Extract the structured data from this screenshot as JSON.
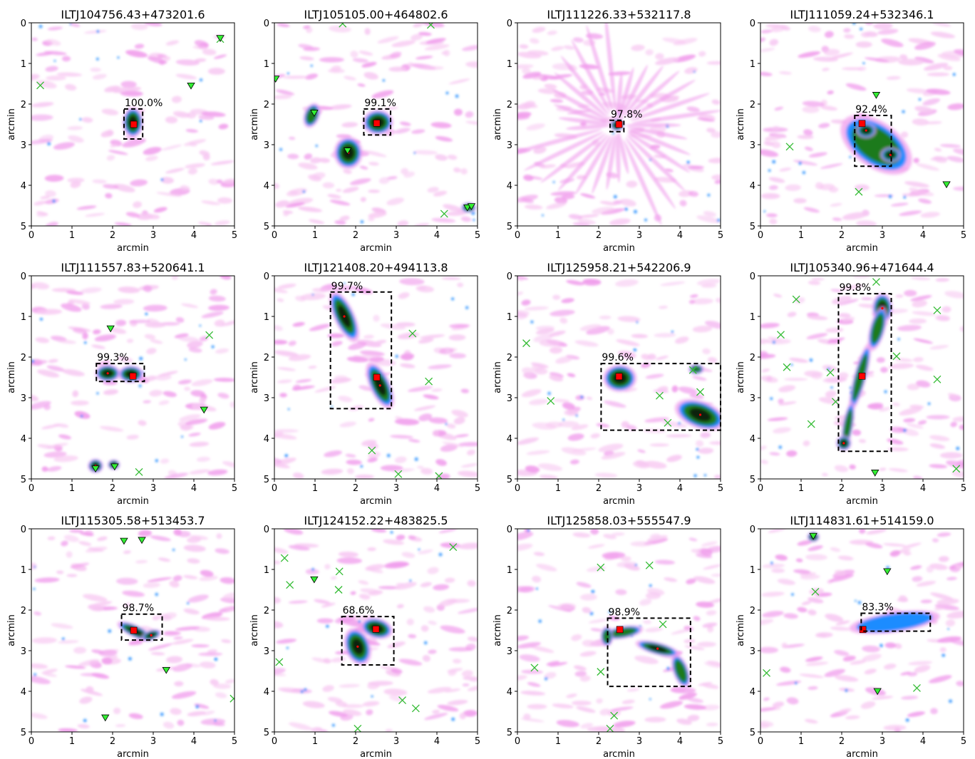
{
  "figure": {
    "colors": {
      "background_faint": "#f7c8f2",
      "background_pink": "#f09cec",
      "emission_blue": "#1f8cff",
      "emission_green": "#1c7a1c",
      "emission_dark": "#0b240b",
      "core_red": "#ff0000",
      "marker_green": "#33ee33",
      "cross_green": "#33bb33",
      "box": "#000000"
    }
  },
  "chart_data": [
    {
      "type": "scatter",
      "title": "ILTJ104756.43+473201.6",
      "xlabel": "arcmin",
      "ylabel": "arcmin",
      "xlim": [
        0,
        5
      ],
      "ylim": [
        5,
        0
      ],
      "xticks": [
        "0",
        "1",
        "2",
        "3",
        "4",
        "5"
      ],
      "yticks": [
        "0",
        "1",
        "2",
        "3",
        "4",
        "5"
      ],
      "box_label": "100.0%",
      "box": {
        "x0": 2.28,
        "y0": 2.12,
        "x1": 2.74,
        "y1": 2.86
      },
      "sources": [
        {
          "x": 2.5,
          "y": 2.45,
          "rx": 0.2,
          "ry": 0.3,
          "angle": 0,
          "strength": 1.0
        }
      ],
      "square_markers": [
        {
          "x": 2.52,
          "y": 2.5
        }
      ],
      "triangle_markers": [
        {
          "x": 3.93,
          "y": 1.55
        },
        {
          "x": 4.65,
          "y": 0.38
        }
      ],
      "cross_markers": [
        {
          "x": 0.22,
          "y": 1.54
        },
        {
          "x": 4.65,
          "y": 0.4
        }
      ],
      "radial_pattern": false
    },
    {
      "type": "scatter",
      "title": "ILTJ105105.00+464802.6",
      "xlabel": "arcmin",
      "ylabel": "arcmin",
      "xlim": [
        0,
        5
      ],
      "ylim": [
        5,
        0
      ],
      "xticks": [
        "0",
        "1",
        "2",
        "3",
        "4",
        "5"
      ],
      "yticks": [
        "0",
        "1",
        "2",
        "3",
        "4",
        "5"
      ],
      "box_label": "99.1%",
      "box": {
        "x0": 2.2,
        "y0": 2.12,
        "x1": 2.86,
        "y1": 2.76
      },
      "sources": [
        {
          "x": 2.55,
          "y": 2.45,
          "rx": 0.3,
          "ry": 0.25,
          "angle": 0,
          "strength": 1.0
        },
        {
          "x": 1.82,
          "y": 3.2,
          "rx": 0.28,
          "ry": 0.32,
          "angle": 0,
          "strength": 1.0
        },
        {
          "x": 0.92,
          "y": 2.28,
          "rx": 0.15,
          "ry": 0.25,
          "angle": 20,
          "strength": 0.8
        },
        {
          "x": 4.78,
          "y": 4.55,
          "rx": 0.15,
          "ry": 0.1,
          "angle": 0,
          "strength": 0.8
        }
      ],
      "square_markers": [
        {
          "x": 2.52,
          "y": 2.47
        }
      ],
      "triangle_markers": [
        {
          "x": 1.8,
          "y": 3.15
        },
        {
          "x": 0.98,
          "y": 2.22
        },
        {
          "x": 0.03,
          "y": 1.38
        },
        {
          "x": 4.75,
          "y": 4.55
        },
        {
          "x": 4.85,
          "y": 4.52
        }
      ],
      "cross_markers": [
        {
          "x": 1.68,
          "y": 0.02
        },
        {
          "x": 3.85,
          "y": 0.05
        },
        {
          "x": 4.18,
          "y": 4.7
        }
      ],
      "radial_pattern": false
    },
    {
      "type": "scatter",
      "title": "ILTJ111226.33+532117.8",
      "xlabel": "arcmin",
      "ylabel": "arcmin",
      "xlim": [
        0,
        5
      ],
      "ylim": [
        5,
        0
      ],
      "xticks": [
        "0",
        "1",
        "2",
        "3",
        "4",
        "5"
      ],
      "yticks": [
        "0",
        "1",
        "2",
        "3",
        "4",
        "5"
      ],
      "box_label": "97.8%",
      "box": {
        "x0": 2.28,
        "y0": 2.4,
        "x1": 2.62,
        "y1": 2.68
      },
      "sources": [
        {
          "x": 2.45,
          "y": 2.52,
          "rx": 0.14,
          "ry": 0.12,
          "angle": 0,
          "strength": 1.0
        }
      ],
      "square_markers": [
        {
          "x": 2.5,
          "y": 2.5
        }
      ],
      "triangle_markers": [],
      "cross_markers": [],
      "radial_pattern": true
    },
    {
      "type": "scatter",
      "title": "ILTJ111059.24+532346.1",
      "xlabel": "arcmin",
      "ylabel": "arcmin",
      "xlim": [
        0,
        5
      ],
      "ylim": [
        5,
        0
      ],
      "xticks": [
        "0",
        "1",
        "2",
        "3",
        "4",
        "5"
      ],
      "yticks": [
        "0",
        "1",
        "2",
        "3",
        "4",
        "5"
      ],
      "box_label": "92.4%",
      "box": {
        "x0": 2.32,
        "y0": 2.28,
        "x1": 3.22,
        "y1": 3.53
      },
      "sources": [
        {
          "x": 2.85,
          "y": 3.0,
          "rx": 0.8,
          "ry": 0.45,
          "angle": 35,
          "strength": 0.55
        },
        {
          "x": 2.6,
          "y": 2.65,
          "rx": 0.2,
          "ry": 0.15,
          "angle": 0,
          "strength": 1.0
        },
        {
          "x": 3.2,
          "y": 3.25,
          "rx": 0.2,
          "ry": 0.15,
          "angle": 0,
          "strength": 1.0
        }
      ],
      "square_markers": [
        {
          "x": 2.5,
          "y": 2.48
        }
      ],
      "triangle_markers": [
        {
          "x": 2.85,
          "y": 1.78
        },
        {
          "x": 4.58,
          "y": 3.98
        }
      ],
      "cross_markers": [
        {
          "x": 0.72,
          "y": 3.05
        },
        {
          "x": 2.42,
          "y": 4.16
        }
      ],
      "radial_pattern": false
    },
    {
      "type": "scatter",
      "title": "ILTJ111557.83+520641.1",
      "xlabel": "arcmin",
      "ylabel": "arcmin",
      "xlim": [
        0,
        5
      ],
      "ylim": [
        5,
        0
      ],
      "xticks": [
        "0",
        "1",
        "2",
        "3",
        "4",
        "5"
      ],
      "yticks": [
        "0",
        "1",
        "2",
        "3",
        "4",
        "5"
      ],
      "box_label": "99.3%",
      "box": {
        "x0": 1.6,
        "y0": 2.16,
        "x1": 2.78,
        "y1": 2.6
      },
      "sources": [
        {
          "x": 1.88,
          "y": 2.4,
          "rx": 0.25,
          "ry": 0.17,
          "angle": 0,
          "strength": 1.0
        },
        {
          "x": 2.45,
          "y": 2.42,
          "rx": 0.25,
          "ry": 0.17,
          "angle": 0,
          "strength": 1.0
        },
        {
          "x": 1.58,
          "y": 4.68,
          "rx": 0.15,
          "ry": 0.14,
          "angle": 0,
          "strength": 0.9
        },
        {
          "x": 2.03,
          "y": 4.65,
          "rx": 0.12,
          "ry": 0.1,
          "angle": 0,
          "strength": 0.9
        }
      ],
      "square_markers": [
        {
          "x": 2.5,
          "y": 2.47
        }
      ],
      "triangle_markers": [
        {
          "x": 1.95,
          "y": 1.3
        },
        {
          "x": 4.25,
          "y": 3.3
        },
        {
          "x": 1.58,
          "y": 4.75
        },
        {
          "x": 2.05,
          "y": 4.7
        }
      ],
      "cross_markers": [
        {
          "x": 4.38,
          "y": 1.46
        },
        {
          "x": 2.65,
          "y": 4.83
        }
      ],
      "radial_pattern": false
    },
    {
      "type": "scatter",
      "title": "ILTJ121408.20+494113.8",
      "xlabel": "arcmin",
      "ylabel": "arcmin",
      "xlim": [
        0,
        5
      ],
      "ylim": [
        5,
        0
      ],
      "xticks": [
        "0",
        "1",
        "2",
        "3",
        "4",
        "5"
      ],
      "yticks": [
        "0",
        "1",
        "2",
        "3",
        "4",
        "5"
      ],
      "box_label": "99.7%",
      "box": {
        "x0": 1.38,
        "y0": 0.4,
        "x1": 2.88,
        "y1": 3.27
      },
      "sources": [
        {
          "x": 1.72,
          "y": 1.0,
          "rx": 0.2,
          "ry": 0.55,
          "angle": -25,
          "strength": 1.0
        },
        {
          "x": 2.6,
          "y": 2.7,
          "rx": 0.2,
          "ry": 0.5,
          "angle": -25,
          "strength": 1.0
        }
      ],
      "square_markers": [
        {
          "x": 2.52,
          "y": 2.5
        }
      ],
      "triangle_markers": [],
      "cross_markers": [
        {
          "x": 3.4,
          "y": 1.42
        },
        {
          "x": 3.8,
          "y": 2.6
        },
        {
          "x": 2.4,
          "y": 4.3
        },
        {
          "x": 3.05,
          "y": 4.88
        },
        {
          "x": 4.05,
          "y": 4.93
        }
      ],
      "radial_pattern": false
    },
    {
      "type": "scatter",
      "title": "ILTJ125958.21+542206.9",
      "xlabel": "arcmin",
      "ylabel": "arcmin",
      "xlim": [
        0,
        5
      ],
      "ylim": [
        5,
        0
      ],
      "xticks": [
        "0",
        "1",
        "2",
        "3",
        "4",
        "5"
      ],
      "yticks": [
        "0",
        "1",
        "2",
        "3",
        "4",
        "5"
      ],
      "box_label": "99.6%",
      "box": {
        "x0": 2.06,
        "y0": 2.16,
        "x1": 5.0,
        "y1": 3.8
      },
      "sources": [
        {
          "x": 2.52,
          "y": 2.52,
          "rx": 0.33,
          "ry": 0.27,
          "angle": 0,
          "strength": 1.0
        },
        {
          "x": 4.5,
          "y": 3.42,
          "rx": 0.52,
          "ry": 0.27,
          "angle": 20,
          "strength": 1.0
        },
        {
          "x": 4.4,
          "y": 2.3,
          "rx": 0.15,
          "ry": 0.1,
          "angle": 0,
          "strength": 0.8
        }
      ],
      "square_markers": [
        {
          "x": 2.5,
          "y": 2.48
        }
      ],
      "triangle_markers": [],
      "cross_markers": [
        {
          "x": 0.22,
          "y": 1.66
        },
        {
          "x": 0.82,
          "y": 3.08
        },
        {
          "x": 3.5,
          "y": 2.95
        },
        {
          "x": 3.7,
          "y": 3.62
        },
        {
          "x": 4.32,
          "y": 2.32
        },
        {
          "x": 4.5,
          "y": 2.86
        }
      ],
      "radial_pattern": false
    },
    {
      "type": "scatter",
      "title": "ILTJ105340.96+471644.4",
      "xlabel": "arcmin",
      "ylabel": "arcmin",
      "xlim": [
        0,
        5
      ],
      "ylim": [
        5,
        0
      ],
      "xticks": [
        "0",
        "1",
        "2",
        "3",
        "4",
        "5"
      ],
      "yticks": [
        "0",
        "1",
        "2",
        "3",
        "4",
        "5"
      ],
      "box_label": "99.8%",
      "box": {
        "x0": 1.92,
        "y0": 0.44,
        "x1": 3.22,
        "y1": 4.32
      },
      "sources": [
        {
          "x": 3.0,
          "y": 0.8,
          "rx": 0.2,
          "ry": 0.3,
          "angle": 0,
          "strength": 1.0
        },
        {
          "x": 2.88,
          "y": 1.3,
          "rx": 0.15,
          "ry": 0.45,
          "angle": 15,
          "strength": 0.85
        },
        {
          "x": 2.45,
          "y": 2.5,
          "rx": 0.12,
          "ry": 0.7,
          "angle": 15,
          "strength": 0.75
        },
        {
          "x": 2.15,
          "y": 3.7,
          "rx": 0.1,
          "ry": 0.5,
          "angle": 10,
          "strength": 0.6
        },
        {
          "x": 2.05,
          "y": 4.12,
          "rx": 0.15,
          "ry": 0.15,
          "angle": 0,
          "strength": 1.0
        }
      ],
      "square_markers": [
        {
          "x": 2.5,
          "y": 2.47
        }
      ],
      "triangle_markers": [
        {
          "x": 2.82,
          "y": 4.85
        }
      ],
      "cross_markers": [
        {
          "x": 0.5,
          "y": 1.45
        },
        {
          "x": 0.88,
          "y": 0.58
        },
        {
          "x": 0.65,
          "y": 2.25
        },
        {
          "x": 1.72,
          "y": 2.38
        },
        {
          "x": 1.85,
          "y": 3.1
        },
        {
          "x": 1.25,
          "y": 3.65
        },
        {
          "x": 2.85,
          "y": 0.15
        },
        {
          "x": 3.35,
          "y": 1.98
        },
        {
          "x": 4.35,
          "y": 0.85
        },
        {
          "x": 4.35,
          "y": 2.55
        },
        {
          "x": 4.82,
          "y": 4.75
        }
      ],
      "radial_pattern": false
    },
    {
      "type": "scatter",
      "title": "ILTJ115305.58+513453.7",
      "xlabel": "arcmin",
      "ylabel": "arcmin",
      "xlim": [
        0,
        5
      ],
      "ylim": [
        5,
        0
      ],
      "xticks": [
        "0",
        "1",
        "2",
        "3",
        "4",
        "5"
      ],
      "yticks": [
        "0",
        "1",
        "2",
        "3",
        "4",
        "5"
      ],
      "box_label": "98.7%",
      "box": {
        "x0": 2.22,
        "y0": 2.1,
        "x1": 3.22,
        "y1": 2.74
      },
      "sources": [
        {
          "x": 2.55,
          "y": 2.52,
          "rx": 0.38,
          "ry": 0.12,
          "angle": 25,
          "strength": 1.0
        },
        {
          "x": 2.95,
          "y": 2.62,
          "rx": 0.2,
          "ry": 0.1,
          "angle": -20,
          "strength": 0.9
        }
      ],
      "square_markers": [
        {
          "x": 2.52,
          "y": 2.5
        }
      ],
      "triangle_markers": [
        {
          "x": 2.28,
          "y": 0.3
        },
        {
          "x": 2.72,
          "y": 0.28
        },
        {
          "x": 3.32,
          "y": 3.48
        },
        {
          "x": 1.82,
          "y": 4.65
        }
      ],
      "cross_markers": [
        {
          "x": 4.98,
          "y": 4.18
        }
      ],
      "radial_pattern": false
    },
    {
      "type": "scatter",
      "title": "ILTJ124152.22+483825.5",
      "xlabel": "arcmin",
      "ylabel": "arcmin",
      "xlim": [
        0,
        5
      ],
      "ylim": [
        5,
        0
      ],
      "xticks": [
        "0",
        "1",
        "2",
        "3",
        "4",
        "5"
      ],
      "yticks": [
        "0",
        "1",
        "2",
        "3",
        "4",
        "5"
      ],
      "box_label": "68.6%",
      "box": {
        "x0": 1.66,
        "y0": 2.16,
        "x1": 2.94,
        "y1": 3.35
      },
      "sources": [
        {
          "x": 2.52,
          "y": 2.45,
          "rx": 0.32,
          "ry": 0.2,
          "angle": 15,
          "strength": 1.0
        },
        {
          "x": 2.05,
          "y": 2.9,
          "rx": 0.25,
          "ry": 0.38,
          "angle": -20,
          "strength": 1.0
        }
      ],
      "square_markers": [
        {
          "x": 2.5,
          "y": 2.47
        }
      ],
      "triangle_markers": [
        {
          "x": 0.98,
          "y": 1.25
        }
      ],
      "cross_markers": [
        {
          "x": 0.25,
          "y": 0.72
        },
        {
          "x": 0.38,
          "y": 1.38
        },
        {
          "x": 0.12,
          "y": 3.28
        },
        {
          "x": 1.6,
          "y": 1.05
        },
        {
          "x": 1.58,
          "y": 1.5
        },
        {
          "x": 4.4,
          "y": 0.45
        },
        {
          "x": 3.15,
          "y": 4.22
        },
        {
          "x": 3.48,
          "y": 4.42
        },
        {
          "x": 2.05,
          "y": 4.92
        }
      ],
      "radial_pattern": false
    },
    {
      "type": "scatter",
      "title": "ILTJ125858.03+555547.9",
      "xlabel": "arcmin",
      "ylabel": "arcmin",
      "xlim": [
        0,
        5
      ],
      "ylim": [
        5,
        0
      ],
      "xticks": [
        "0",
        "1",
        "2",
        "3",
        "4",
        "5"
      ],
      "yticks": [
        "0",
        "1",
        "2",
        "3",
        "4",
        "5"
      ],
      "box_label": "98.9%",
      "box": {
        "x0": 2.22,
        "y0": 2.2,
        "x1": 4.26,
        "y1": 3.88
      },
      "sources": [
        {
          "x": 2.6,
          "y": 2.55,
          "rx": 0.4,
          "ry": 0.12,
          "angle": -10,
          "strength": 0.7
        },
        {
          "x": 3.45,
          "y": 2.95,
          "rx": 0.45,
          "ry": 0.12,
          "angle": 15,
          "strength": 0.9
        },
        {
          "x": 4.02,
          "y": 3.5,
          "rx": 0.15,
          "ry": 0.35,
          "angle": -20,
          "strength": 0.75
        },
        {
          "x": 2.2,
          "y": 2.65,
          "rx": 0.12,
          "ry": 0.2,
          "angle": 0,
          "strength": 0.8
        }
      ],
      "square_markers": [
        {
          "x": 2.52,
          "y": 2.48
        }
      ],
      "triangle_markers": [],
      "cross_markers": [
        {
          "x": 2.05,
          "y": 0.95
        },
        {
          "x": 3.25,
          "y": 0.9
        },
        {
          "x": 0.42,
          "y": 3.42
        },
        {
          "x": 2.05,
          "y": 3.52
        },
        {
          "x": 3.58,
          "y": 2.35
        },
        {
          "x": 2.38,
          "y": 4.6
        },
        {
          "x": 2.28,
          "y": 4.92
        }
      ],
      "radial_pattern": false
    },
    {
      "type": "scatter",
      "title": "ILTJ114831.61+514159.0",
      "xlabel": "arcmin",
      "ylabel": "arcmin",
      "xlim": [
        0,
        5
      ],
      "ylim": [
        5,
        0
      ],
      "xticks": [
        "0",
        "1",
        "2",
        "3",
        "4",
        "5"
      ],
      "yticks": [
        "0",
        "1",
        "2",
        "3",
        "4",
        "5"
      ],
      "box_label": "83.3%",
      "box": {
        "x0": 2.48,
        "y0": 2.08,
        "x1": 4.18,
        "y1": 2.52
      },
      "sources": [
        {
          "x": 3.3,
          "y": 2.3,
          "rx": 0.9,
          "ry": 0.2,
          "angle": -8,
          "strength": 0.45
        },
        {
          "x": 1.3,
          "y": 0.2,
          "rx": 0.12,
          "ry": 0.1,
          "angle": 0,
          "strength": 1.0
        }
      ],
      "square_markers": [
        {
          "x": 2.52,
          "y": 2.48
        }
      ],
      "triangle_markers": [
        {
          "x": 1.3,
          "y": 0.18
        },
        {
          "x": 3.12,
          "y": 1.05
        },
        {
          "x": 2.88,
          "y": 4.0
        }
      ],
      "cross_markers": [
        {
          "x": 0.15,
          "y": 3.55
        },
        {
          "x": 1.35,
          "y": 1.55
        },
        {
          "x": 3.85,
          "y": 3.92
        }
      ],
      "radial_pattern": false
    }
  ]
}
